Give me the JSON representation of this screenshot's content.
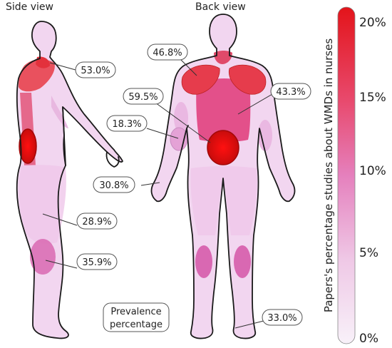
{
  "views": {
    "side": "Side view",
    "back": "Back view"
  },
  "legend_box": {
    "line1": "Prevalence",
    "line2": "percentage"
  },
  "regions": [
    {
      "key": "neck_side",
      "value": "53.0%"
    },
    {
      "key": "shoulders",
      "value": "46.8%"
    },
    {
      "key": "lower_back",
      "value": "59.5%"
    },
    {
      "key": "upper_back",
      "value": "43.3%"
    },
    {
      "key": "elbow",
      "value": "18.3%"
    },
    {
      "key": "hand_wrist",
      "value": "30.8%"
    },
    {
      "key": "thigh_hip",
      "value": "28.9%"
    },
    {
      "key": "knee",
      "value": "35.9%"
    },
    {
      "key": "ankle_foot",
      "value": "33.0%"
    }
  ],
  "colorbar": {
    "label": "Papers's percentage studies about WMDs in nurses",
    "ticks": [
      "20%",
      "15%",
      "10%",
      "5%",
      "0%"
    ],
    "colors": {
      "low": "#f7eef8",
      "mid": "#e37bb0",
      "high": "#e8151b",
      "top": "#d10f12"
    }
  }
}
